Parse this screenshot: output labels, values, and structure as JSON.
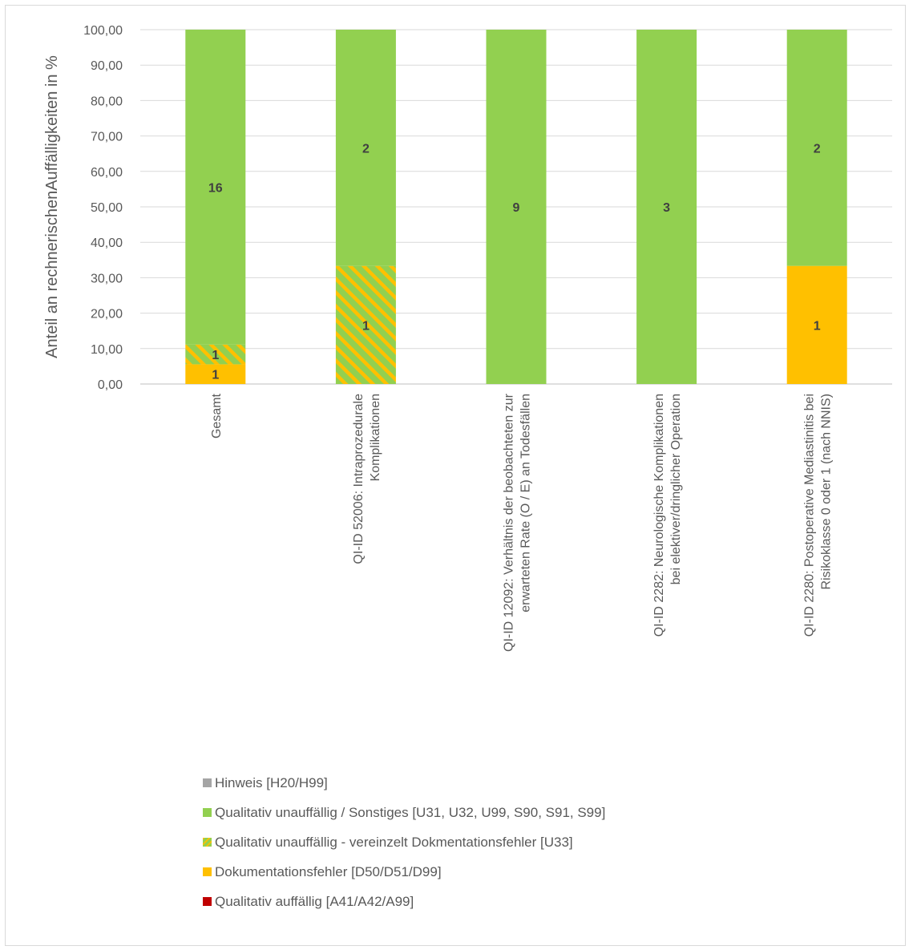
{
  "chart_data": {
    "type": "bar",
    "stacked": true,
    "ylabel": "Anteil an rechnerischenAuffälligkeiten in %",
    "ylim": [
      0,
      100
    ],
    "yticks": [
      "0,00",
      "10,00",
      "20,00",
      "30,00",
      "40,00",
      "50,00",
      "60,00",
      "70,00",
      "80,00",
      "90,00",
      "100,00"
    ],
    "grid": true,
    "legend_position": "bottom",
    "categories": [
      [
        "Gesamt"
      ],
      [
        "QI-ID 52006: Intraprozedurale",
        "Komplikationen"
      ],
      [
        "QI-ID 12092: Verhältnis der beobachteten zur",
        "erwarteten Rate (O / E) an Todesfällen"
      ],
      [
        "QI-ID 2282: Neurologische Komplikationen",
        "bei elektiver/dringlicher Operation"
      ],
      [
        "QI-ID 2280: Postoperative Mediastinitis bei",
        "Risikoklasse 0 oder 1 (nach NNIS)"
      ]
    ],
    "series": [
      {
        "name": "Qualitativ auffällig [A41/A42/A99]",
        "color": "#c00000",
        "pattern": "solid",
        "values": [
          0,
          0,
          0,
          0,
          0
        ],
        "labels": [
          "",
          "",
          "",
          "",
          ""
        ]
      },
      {
        "name": "Dokumentationsfehler [D50/D51/D99]",
        "color": "#ffc000",
        "pattern": "solid",
        "values": [
          5.56,
          0,
          0,
          0,
          33.33
        ],
        "labels": [
          "1",
          "",
          "",
          "",
          "1"
        ]
      },
      {
        "name": "Qualitativ unauffällig - vereinzelt Dokmentationsfehler [U33]",
        "color": "#92d050",
        "color2": "#ffc000",
        "pattern": "striped",
        "values": [
          5.56,
          33.33,
          0,
          0,
          0
        ],
        "labels": [
          "1",
          "1",
          "",
          "",
          ""
        ]
      },
      {
        "name": "Qualitativ unauffällig / Sonstiges [U31, U32, U99, S90, S91, S99]",
        "color": "#92d050",
        "pattern": "solid",
        "values": [
          88.89,
          66.67,
          100,
          100,
          66.67
        ],
        "labels": [
          "16",
          "2",
          "9",
          "3",
          "2"
        ]
      },
      {
        "name": "Hinweis [H20/H99]",
        "color": "#a5a5a5",
        "pattern": "solid",
        "values": [
          0,
          0,
          0,
          0,
          0
        ],
        "labels": [
          "",
          "",
          "",
          "",
          ""
        ]
      }
    ]
  },
  "legend_order": [
    4,
    3,
    2,
    1,
    0
  ]
}
